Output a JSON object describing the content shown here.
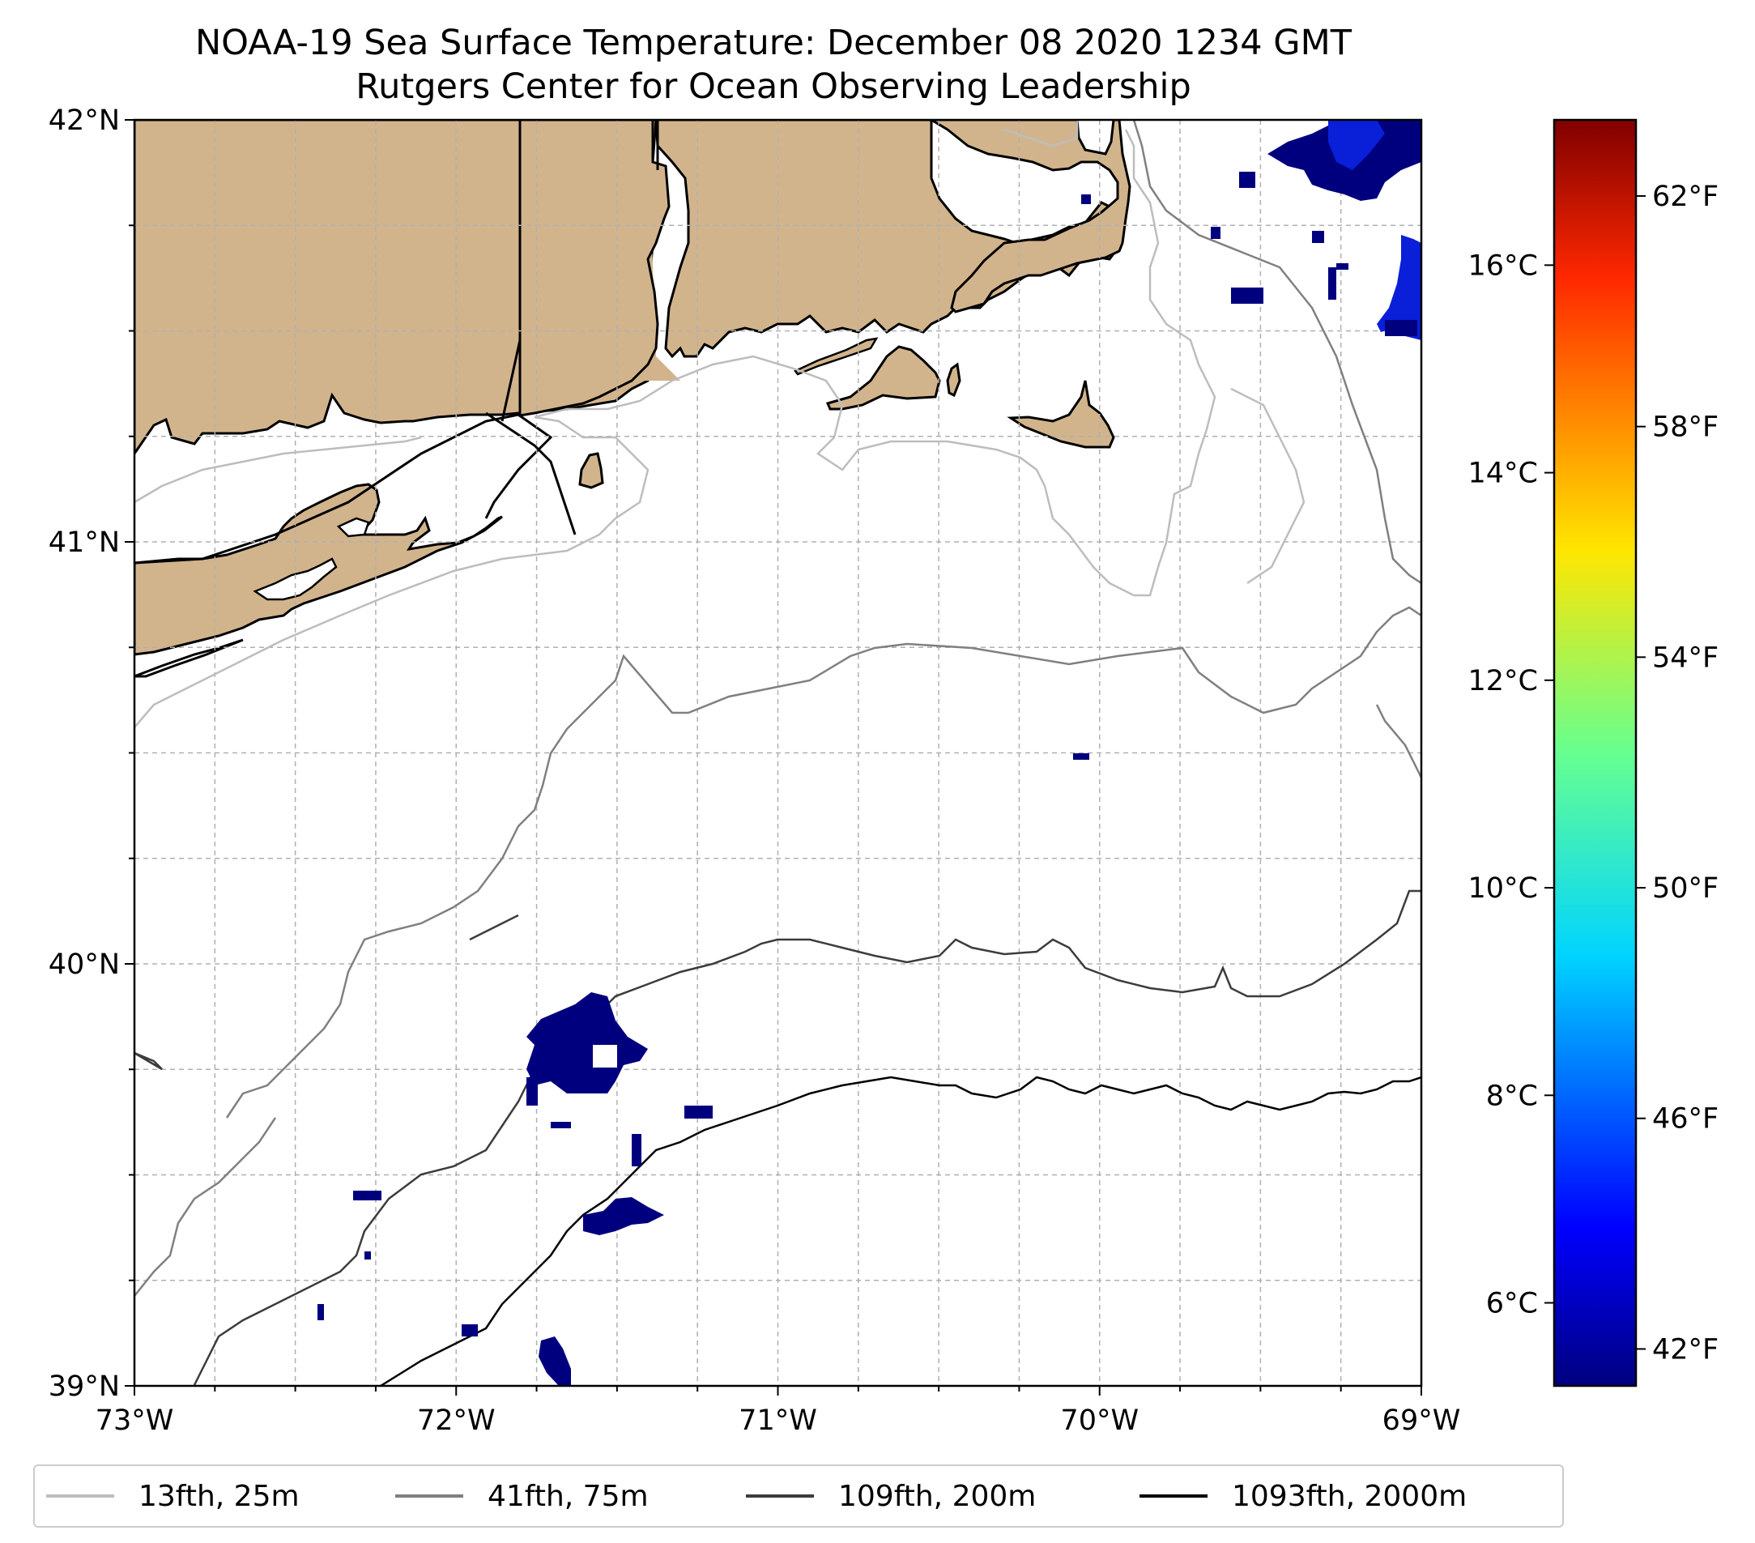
{
  "title": {
    "line1": "NOAA-19 Sea Surface Temperature: December 08 2020 1234 GMT",
    "line2": "Rutgers Center for Ocean Observing Leadership"
  },
  "colors": {
    "land": "#d2b48c",
    "coast": "#000000",
    "grid": "#b0b0b0",
    "cold_pixels": "#00007f",
    "blue_pixels": "#0a1fd8",
    "iso25": "#bdbdbd",
    "iso75": "#808080",
    "iso200": "#3c3c3c",
    "iso2000": "#000000"
  },
  "chart_data": {
    "type": "map",
    "lon_range": [
      -73,
      -69
    ],
    "lat_range": [
      39,
      42
    ],
    "x_ticks": [
      {
        "value": -73,
        "label": "73°W"
      },
      {
        "value": -72,
        "label": "72°W"
      },
      {
        "value": -71,
        "label": "71°W"
      },
      {
        "value": -70,
        "label": "70°W"
      },
      {
        "value": -69,
        "label": "69°W"
      }
    ],
    "y_ticks": [
      {
        "value": 39,
        "label": "39°N"
      },
      {
        "value": 40,
        "label": "40°N"
      },
      {
        "value": 41,
        "label": "41°N"
      },
      {
        "value": 42,
        "label": "42°N"
      }
    ],
    "gridlines": "dashed every 0.25°",
    "colorbar": {
      "cmap": "jet",
      "range_c": [
        5.2,
        17.4
      ],
      "celsius_ticks": [
        {
          "value": 6,
          "label": "6°C"
        },
        {
          "value": 8,
          "label": "8°C"
        },
        {
          "value": 10,
          "label": "10°C"
        },
        {
          "value": 12,
          "label": "12°C"
        },
        {
          "value": 14,
          "label": "14°C"
        },
        {
          "value": 16,
          "label": "16°C"
        }
      ],
      "fahrenheit_ticks": [
        {
          "value": 42,
          "label": "42°F"
        },
        {
          "value": 46,
          "label": "46°F"
        },
        {
          "value": 50,
          "label": "50°F"
        },
        {
          "value": 54,
          "label": "54°F"
        },
        {
          "value": 58,
          "label": "58°F"
        },
        {
          "value": 62,
          "label": "62°F"
        }
      ]
    },
    "legend": [
      {
        "label": "13fth, 25m",
        "color": "#bdbdbd"
      },
      {
        "label": "41fth, 75m",
        "color": "#808080"
      },
      {
        "label": "109fth, 200m",
        "color": "#3c3c3c"
      },
      {
        "label": "1093fth, 2000m",
        "color": "#000000"
      }
    ],
    "legend_position": "bottom",
    "sst_patches": [
      {
        "lon": [
          -71.85,
          -71.4
        ],
        "lat": [
          39.7,
          39.95
        ],
        "value_c": 5.3
      },
      {
        "lon": [
          -71.65,
          -71.4
        ],
        "lat": [
          39.35,
          39.48
        ],
        "value_c": 5.3
      },
      {
        "lon": [
          -70.4,
          -69.0
        ],
        "lat": [
          41.5,
          42.0
        ],
        "value_c": 5.4
      },
      {
        "lon": [
          -71.72,
          -71.62
        ],
        "lat": [
          39.0,
          39.1
        ],
        "value_c": 5.3
      },
      {
        "lon": [
          -71.3,
          -71.22
        ],
        "lat": [
          39.6,
          39.63
        ],
        "value_c": 5.3
      }
    ]
  }
}
